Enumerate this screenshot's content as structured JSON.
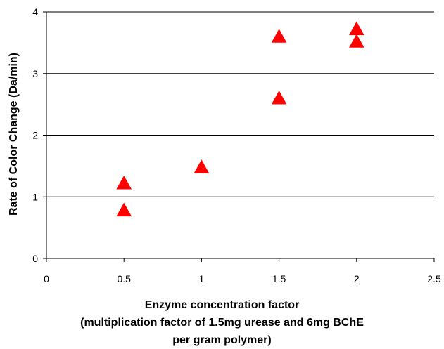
{
  "chart_data": {
    "type": "scatter",
    "title": "",
    "xlabel_lines": [
      "Enzyme concentration factor",
      "(multiplication factor of 1.5mg urease and 6mg BChE",
      "per gram polymer)"
    ],
    "ylabel": "Rate of Color Change (Da/min)",
    "xlim": [
      0,
      2.5
    ],
    "ylim": [
      0,
      4
    ],
    "x_ticks": [
      "0",
      "0.5",
      "1",
      "1.5",
      "2",
      "2.5"
    ],
    "y_ticks": [
      "0",
      "1",
      "2",
      "3",
      "4"
    ],
    "grid": "horizontal",
    "legend": "none",
    "marker": "triangle",
    "marker_color": "#ff0000",
    "series": [
      {
        "x": [
          0.5,
          0.5,
          1.0,
          1.5,
          1.5,
          2.0,
          2.0
        ],
        "y": [
          0.78,
          1.22,
          1.48,
          3.6,
          2.6,
          3.72,
          3.52
        ]
      }
    ]
  }
}
